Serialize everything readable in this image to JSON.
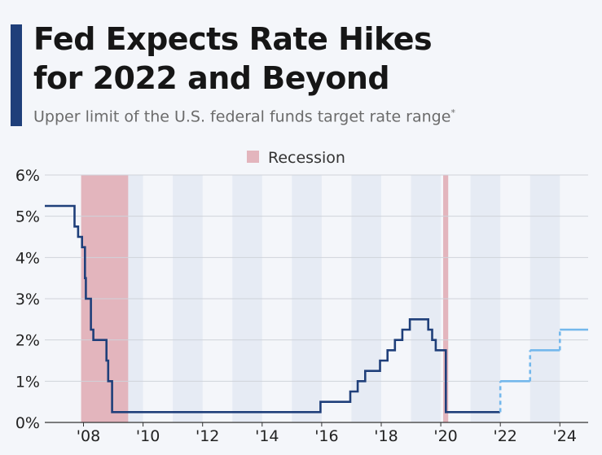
{
  "title_line1": "Fed Expects Rate Hikes",
  "title_line2": "for 2022 and Beyond",
  "subtitle": "Upper limit of the U.S. federal funds target rate range",
  "subtitle_marker": "*",
  "colors": {
    "accent": "#1f3f7a",
    "actual_line": "#1f3f7a",
    "projection_line": "#74b8ec",
    "recession": "#e3b5bd",
    "year_band": "#e6ebf4",
    "grid": "#cfd3da",
    "text": "#161616",
    "muted": "#6b6b6b"
  },
  "chart_data": {
    "type": "line",
    "legend": {
      "label": "Recession",
      "placement": "top-center"
    },
    "xlim": [
      2006.7,
      2024.95
    ],
    "ylim": [
      0,
      6
    ],
    "y_ticks": [
      {
        "value": 0,
        "label": "0%"
      },
      {
        "value": 1,
        "label": "1%"
      },
      {
        "value": 2,
        "label": "2%"
      },
      {
        "value": 3,
        "label": "3%"
      },
      {
        "value": 4,
        "label": "4%"
      },
      {
        "value": 5,
        "label": "5%"
      },
      {
        "value": 6,
        "label": "6%"
      }
    ],
    "x_ticks": [
      {
        "value": 2008,
        "label": "'08"
      },
      {
        "value": 2010,
        "label": "'10"
      },
      {
        "value": 2012,
        "label": "'12"
      },
      {
        "value": 2014,
        "label": "'14"
      },
      {
        "value": 2016,
        "label": "'16"
      },
      {
        "value": 2018,
        "label": "'18"
      },
      {
        "value": 2020,
        "label": "'20"
      },
      {
        "value": 2022,
        "label": "'22"
      },
      {
        "value": 2024,
        "label": "'24"
      }
    ],
    "year_bands": [
      2009,
      2011,
      2013,
      2015,
      2017,
      2019,
      2021,
      2023
    ],
    "recessions": [
      {
        "start": 2007.92,
        "end": 2009.5
      },
      {
        "start": 2020.08,
        "end": 2020.25
      }
    ],
    "series": [
      {
        "style": "actual-step",
        "points": [
          [
            2006.7,
            5.25
          ],
          [
            2007.7,
            5.25
          ],
          [
            2007.7,
            4.75
          ],
          [
            2007.82,
            4.75
          ],
          [
            2007.82,
            4.5
          ],
          [
            2007.95,
            4.5
          ],
          [
            2007.95,
            4.25
          ],
          [
            2008.05,
            4.25
          ],
          [
            2008.05,
            3.5
          ],
          [
            2008.08,
            3.5
          ],
          [
            2008.08,
            3.0
          ],
          [
            2008.25,
            3.0
          ],
          [
            2008.25,
            2.25
          ],
          [
            2008.33,
            2.25
          ],
          [
            2008.33,
            2.0
          ],
          [
            2008.77,
            2.0
          ],
          [
            2008.77,
            1.5
          ],
          [
            2008.83,
            1.5
          ],
          [
            2008.83,
            1.0
          ],
          [
            2008.96,
            1.0
          ],
          [
            2008.96,
            0.25
          ],
          [
            2015.96,
            0.25
          ],
          [
            2015.96,
            0.5
          ],
          [
            2016.96,
            0.5
          ],
          [
            2016.96,
            0.75
          ],
          [
            2017.21,
            0.75
          ],
          [
            2017.21,
            1.0
          ],
          [
            2017.46,
            1.0
          ],
          [
            2017.46,
            1.25
          ],
          [
            2017.96,
            1.25
          ],
          [
            2017.96,
            1.5
          ],
          [
            2018.21,
            1.5
          ],
          [
            2018.21,
            1.75
          ],
          [
            2018.46,
            1.75
          ],
          [
            2018.46,
            2.0
          ],
          [
            2018.71,
            2.0
          ],
          [
            2018.71,
            2.25
          ],
          [
            2018.96,
            2.25
          ],
          [
            2018.96,
            2.5
          ],
          [
            2019.58,
            2.5
          ],
          [
            2019.58,
            2.25
          ],
          [
            2019.71,
            2.25
          ],
          [
            2019.71,
            2.0
          ],
          [
            2019.83,
            2.0
          ],
          [
            2019.83,
            1.75
          ],
          [
            2020.17,
            1.75
          ],
          [
            2020.17,
            0.25
          ],
          [
            2021.99,
            0.25
          ]
        ]
      },
      {
        "style": "projection-step",
        "points": [
          [
            2022.0,
            0.25
          ],
          [
            2022.0,
            1.0
          ],
          [
            2023.0,
            1.0
          ],
          [
            2023.0,
            1.75
          ],
          [
            2024.0,
            1.75
          ],
          [
            2024.0,
            2.25
          ],
          [
            2024.95,
            2.25
          ]
        ]
      }
    ]
  }
}
